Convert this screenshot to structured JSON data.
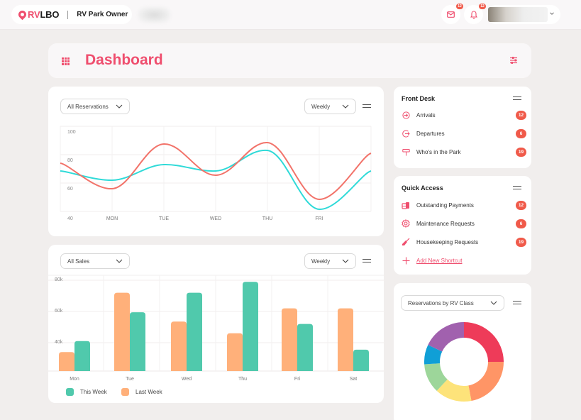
{
  "topbar": {
    "brand_rv": "RV",
    "brand_lbo": "LBO",
    "role": "RV Park Owner",
    "mail_badge": "12",
    "bell_badge": "12"
  },
  "header": {
    "title": "Dashboard"
  },
  "reservations_card": {
    "filter_value": "All Reservations",
    "period_value": "Weekly"
  },
  "sales_card": {
    "filter_value": "All Sales",
    "period_value": "Weekly"
  },
  "front_desk": {
    "title": "Front Desk",
    "items": [
      {
        "label": "Arrivals",
        "count": "12",
        "icon": "arrival-icon"
      },
      {
        "label": "Departures",
        "count": "6",
        "icon": "departure-icon"
      },
      {
        "label": "Who's in the Park",
        "count": "19",
        "icon": "signpost-icon"
      }
    ]
  },
  "quick_access": {
    "title": "Quick Access",
    "items": [
      {
        "label": "Outstanding Payments",
        "count": "12",
        "icon": "coins-icon"
      },
      {
        "label": "Maintenance Requests",
        "count": "6",
        "icon": "gear-icon"
      },
      {
        "label": "Housekeeping Requests",
        "count": "19",
        "icon": "broom-icon"
      }
    ],
    "add_shortcut": "Add New Shortcut"
  },
  "rv_class_card": {
    "filter_value": "Reservations by RV Class"
  },
  "colors": {
    "accent": "#ef4e6e",
    "badge": "#f05a4a",
    "line_red": "#f2736a",
    "line_cyan": "#2fdad8",
    "bar_this_week": "#50c9ac",
    "bar_last_week": "#ffb07a"
  },
  "chart_data": [
    {
      "type": "line",
      "title": "",
      "x": [
        "",
        "MON",
        "TUE",
        "WED",
        "THU",
        "FRI",
        ""
      ],
      "xtick_labels": [
        "MON",
        "TUE",
        "WED",
        "THU",
        "FRI"
      ],
      "ytick_labels": [
        "100",
        "80",
        "60",
        "40"
      ],
      "ylim": [
        40,
        100
      ],
      "grid": true,
      "series": [
        {
          "name": "series-red",
          "color": "#f2736a",
          "values": [
            74,
            56,
            87.5,
            65.5,
            88.5,
            48.5,
            81
          ]
        },
        {
          "name": "series-cyan",
          "color": "#2fdad8",
          "values": [
            68.5,
            62,
            73,
            68.5,
            83,
            41.5,
            68.5
          ]
        }
      ]
    },
    {
      "type": "bar",
      "title": "",
      "categories": [
        "Mon",
        "Tue",
        "Wed",
        "Thu",
        "Fri",
        "Sat"
      ],
      "ytick_labels": [
        "80k",
        "60k",
        "40k"
      ],
      "ylim": [
        22000,
        80000
      ],
      "grid": true,
      "legend": "bottom-left",
      "series": [
        {
          "name": "Last Week",
          "color": "#ffb07a",
          "values": [
            34000,
            72000,
            53500,
            46000,
            62000,
            62000
          ]
        },
        {
          "name": "This Week",
          "color": "#50c9ac",
          "values": [
            41000,
            59500,
            72000,
            79000,
            52000,
            35500
          ]
        }
      ],
      "legend_labels": [
        "This Week",
        "Last Week"
      ]
    },
    {
      "type": "pie",
      "title": "Reservations by RV Class",
      "donut": true,
      "slices": [
        {
          "color": "#ee3b59",
          "value": 25
        },
        {
          "color": "#ff9566",
          "value": 22
        },
        {
          "color": "#fde37a",
          "value": 15
        },
        {
          "color": "#9dd69a",
          "value": 12
        },
        {
          "color": "#109fd6",
          "value": 8
        },
        {
          "color": "#a161ae",
          "value": 18
        }
      ]
    }
  ]
}
